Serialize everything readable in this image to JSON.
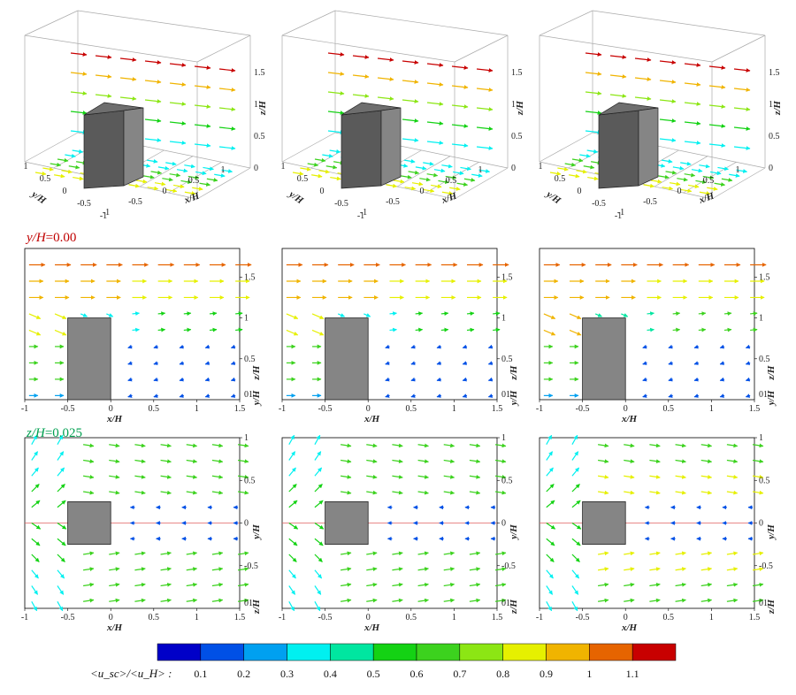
{
  "colors": {
    "ramp": [
      "#0000c8",
      "#0050e6",
      "#00a0f0",
      "#00f0f0",
      "#00e6a0",
      "#14d214",
      "#3cd21e",
      "#8ce614",
      "#e6f000",
      "#f0b400",
      "#e66400",
      "#c80000"
    ],
    "building": "#858585",
    "building_top": "#6e6e6e",
    "building_side": "#5a5a5a",
    "row2_label": "#c00000",
    "row3_label": "#00a050",
    "center_line": "#e06060"
  },
  "rows": {
    "iso": {
      "x_label": "x/H",
      "y_label": "y/H",
      "z_label": "z/H",
      "x_ticks": [
        "-1",
        "-0.5",
        "0",
        "0.5",
        "1"
      ],
      "y_ticks": [
        "-1",
        "-0.5",
        "0",
        "0.5",
        "1"
      ],
      "z_ticks": [
        "0",
        "0.5",
        "1",
        "1.5"
      ]
    },
    "xz": {
      "label_var": "y/H",
      "label_value": "=0.00",
      "x_label": "x/H",
      "z_label": "z/H",
      "y_label": "y/H",
      "x_ticks": [
        "-1",
        "-0.5",
        "0",
        "0.5",
        "1",
        "1.5"
      ],
      "z_ticks": [
        "0.5",
        "1",
        "1.5"
      ],
      "corner_tick": "01"
    },
    "xy": {
      "label_var": "z/H",
      "label_value": "=0.025",
      "x_label": "x/H",
      "y_label": "y/H",
      "z_label": "z/H",
      "x_ticks": [
        "-1",
        "-0.5",
        "0",
        "0.5",
        "1",
        "1.5"
      ],
      "y_ticks": [
        "1",
        "0.5",
        "0",
        "-0.5"
      ],
      "corner_tick": "01"
    }
  },
  "colorbar": {
    "label": "<u_sc>/<u_H> :",
    "ticks": [
      "0.1",
      "0.2",
      "0.3",
      "0.4",
      "0.5",
      "0.6",
      "0.7",
      "0.8",
      "0.9",
      "1",
      "1.1"
    ]
  }
}
